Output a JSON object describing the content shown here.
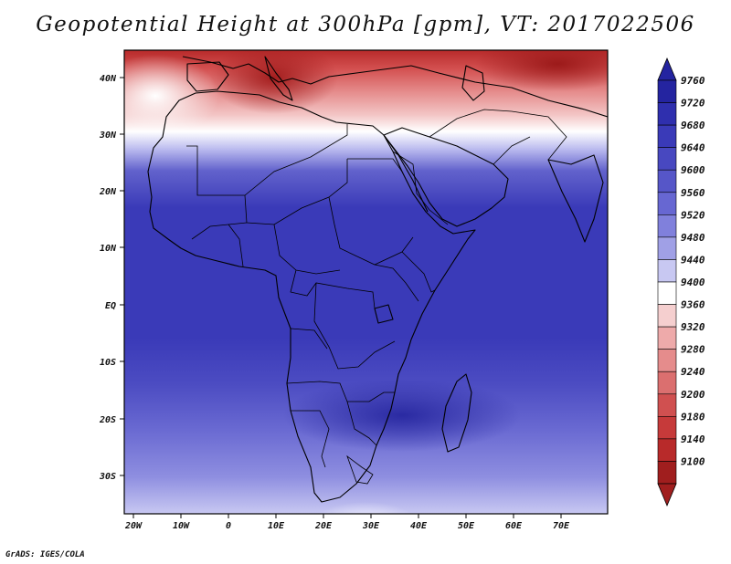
{
  "title": "Geopotential Height at 300hPa [gpm], VT: 2017022506",
  "footer": "GrADS: IGES/COLA",
  "map": {
    "region": "Africa",
    "lon_ticks": [
      "20W",
      "10W",
      "0",
      "10E",
      "20E",
      "30E",
      "40E",
      "50E",
      "60E",
      "70E"
    ],
    "lat_ticks": [
      "40N",
      "30N",
      "20N",
      "10N",
      "EQ",
      "10S",
      "20S",
      "30S"
    ],
    "outline_color": "#000000"
  },
  "colorbar": {
    "levels": [
      "9760",
      "9720",
      "9680",
      "9640",
      "9600",
      "9560",
      "9520",
      "9480",
      "9440",
      "9400",
      "9360",
      "9320",
      "9280",
      "9240",
      "9200",
      "9180",
      "9140",
      "9100"
    ],
    "colors": [
      "#2424a0",
      "#2f2fae",
      "#3a3ab8",
      "#4848c0",
      "#5656c8",
      "#6767d2",
      "#8080dc",
      "#a0a0e6",
      "#c8c8f2",
      "#ffffff",
      "#f5cfcf",
      "#eeaaaa",
      "#e58c8c",
      "#db6f6f",
      "#d05050",
      "#c63a3a",
      "#b82a2a",
      "#a01e1e"
    ]
  },
  "chart_data": {
    "type": "heatmap",
    "title": "Geopotential Height at 300hPa [gpm], VT: 2017022506",
    "units": "gpm",
    "levels": [
      9100,
      9140,
      9180,
      9200,
      9240,
      9280,
      9320,
      9360,
      9400,
      9440,
      9480,
      9520,
      9560,
      9600,
      9640,
      9680,
      9720,
      9760
    ],
    "lon_range": [
      "22W",
      "80E"
    ],
    "lat_range": [
      "37S",
      "45N"
    ]
  }
}
